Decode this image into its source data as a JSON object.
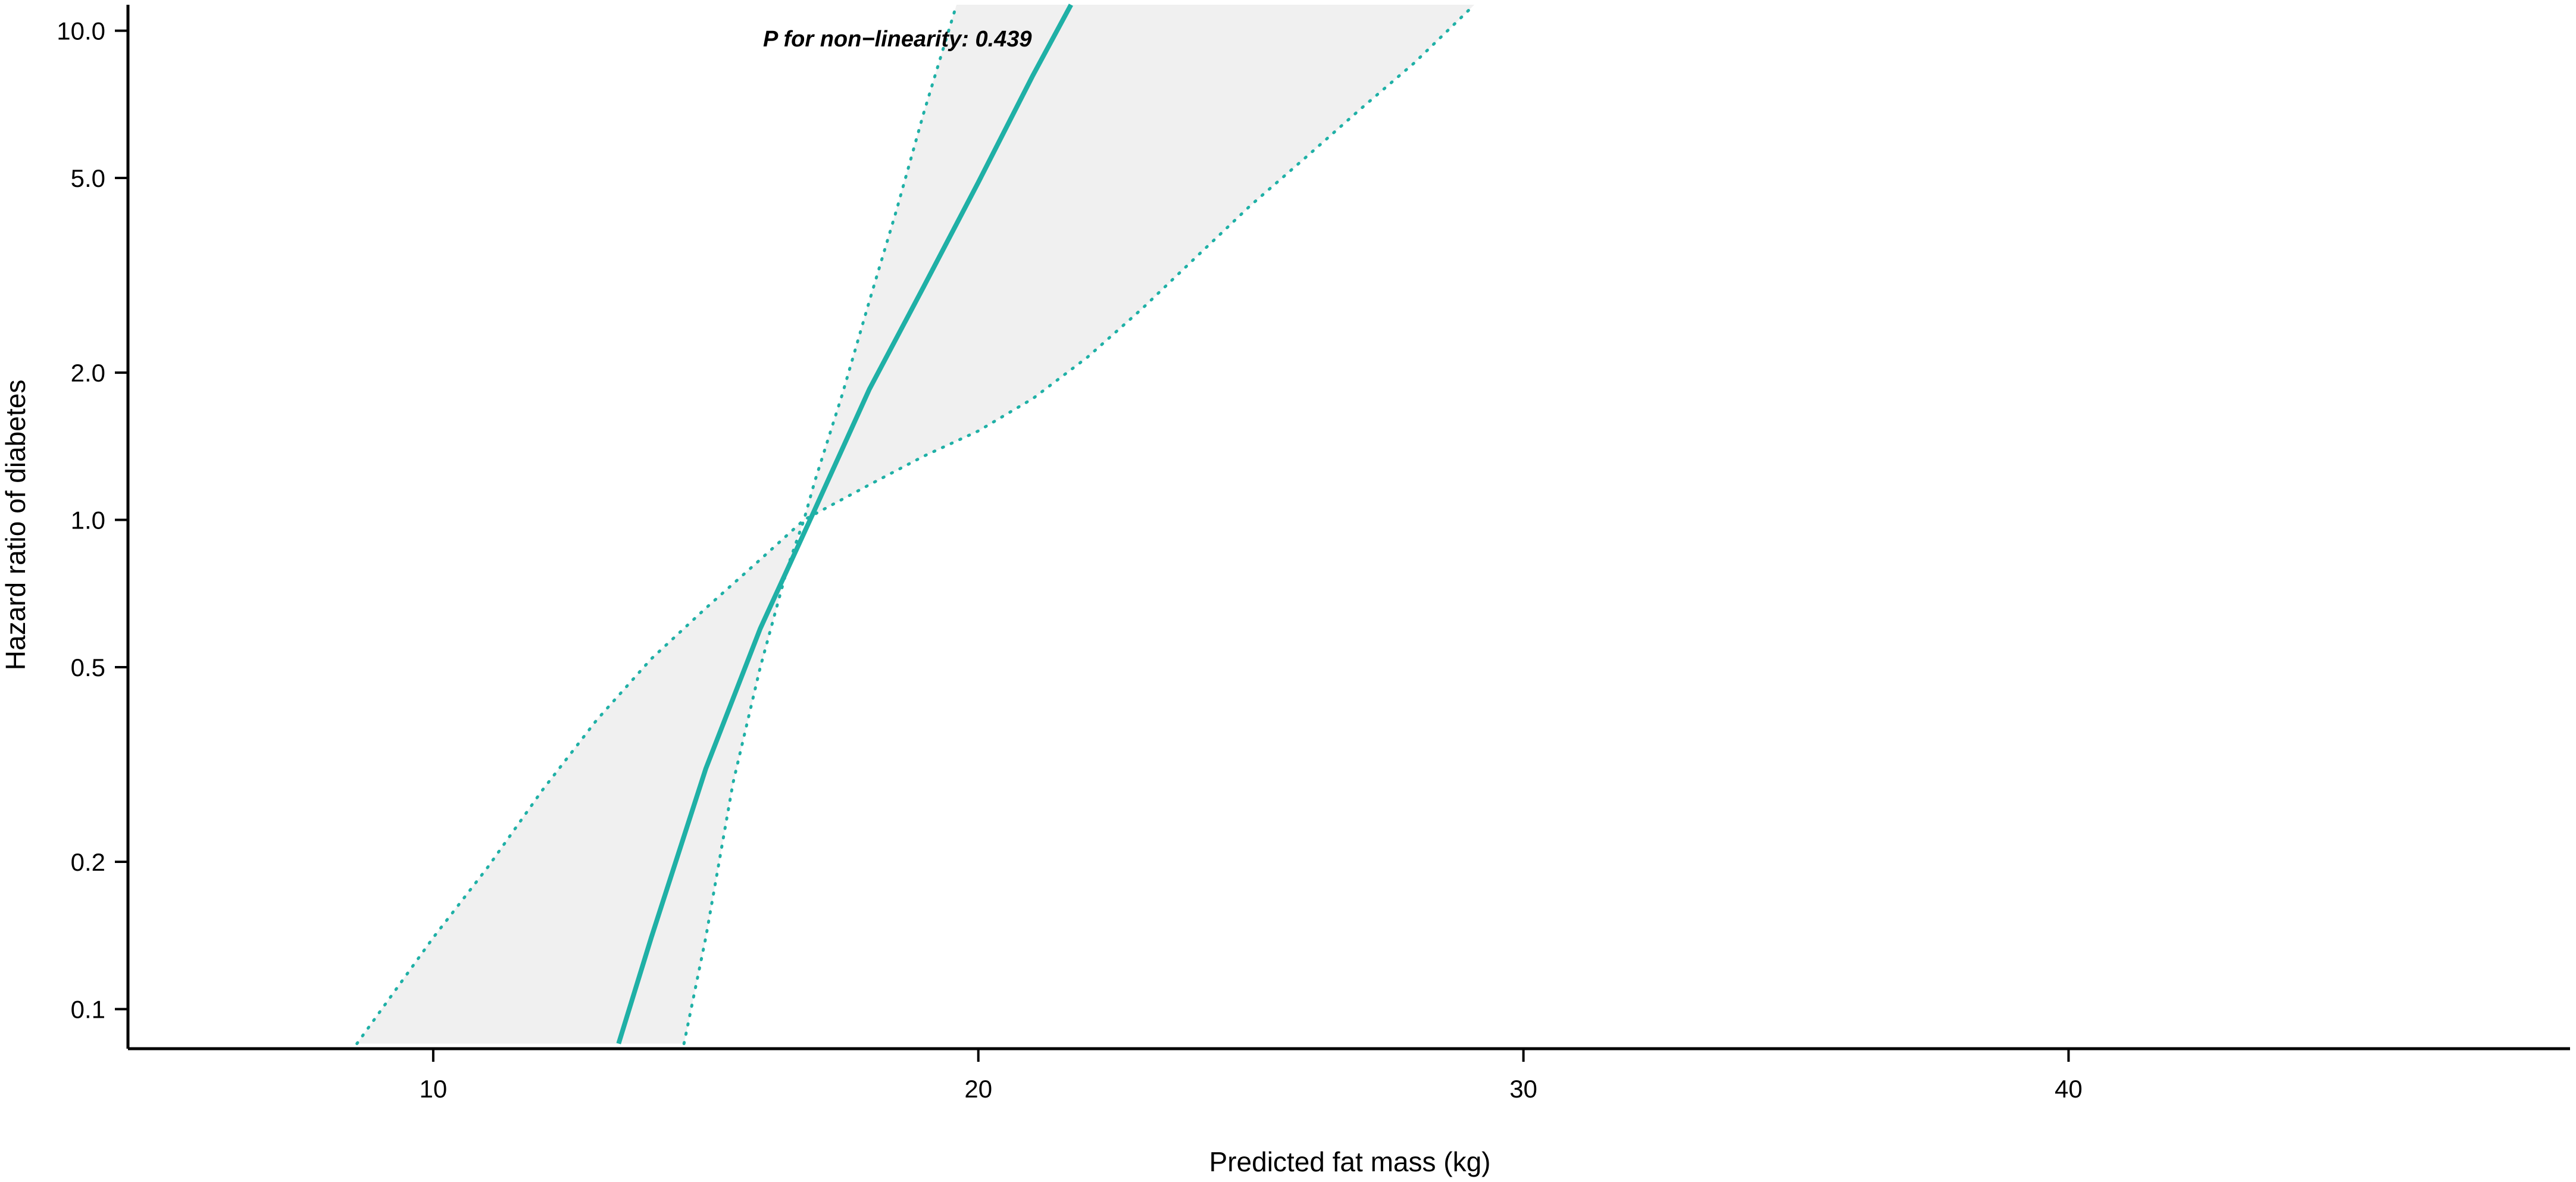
{
  "chart_data": {
    "type": "line",
    "title": "",
    "xlabel": "Predicted fat mass (kg)",
    "ylabel": "Hazard ratio of diabetes",
    "xlim": [
      4.4,
      49.2
    ],
    "ylim": [
      0.083,
      11.3
    ],
    "yscale": "log",
    "grid": false,
    "legend": "none",
    "x_ticks": [
      {
        "value": 10,
        "label": "10"
      },
      {
        "value": 20,
        "label": "20"
      },
      {
        "value": 30,
        "label": "30"
      },
      {
        "value": 40,
        "label": "40"
      }
    ],
    "y_ticks": [
      {
        "value": 0.1,
        "label": "0.1"
      },
      {
        "value": 0.2,
        "label": "0.2"
      },
      {
        "value": 0.5,
        "label": "0.5"
      },
      {
        "value": 1.0,
        "label": "1.0"
      },
      {
        "value": 2.0,
        "label": "2.0"
      },
      {
        "value": 5.0,
        "label": "5.0"
      },
      {
        "value": 10.0,
        "label": "10.0"
      }
    ],
    "annotation": "P for non−linearity: 0.439",
    "colors": {
      "line": "#1fb0a6",
      "ci_band": "#f0f0f0",
      "axis": "#000000"
    },
    "series": [
      {
        "role": "estimate",
        "x": [
          13.4,
          14,
          15,
          16,
          17,
          18,
          19,
          20,
          21,
          21.7
        ],
        "y": [
          0.085,
          0.14,
          0.31,
          0.6,
          1.05,
          1.85,
          3.0,
          4.9,
          8.1,
          11.3
        ]
      },
      {
        "role": "ci_lower",
        "x": [
          8.6,
          10,
          11,
          12,
          13,
          14,
          15,
          16,
          16.8,
          18,
          19,
          20,
          21,
          22,
          23,
          24,
          25,
          26,
          27,
          28,
          29.1
        ],
        "y": [
          0.085,
          0.14,
          0.195,
          0.28,
          0.39,
          0.52,
          0.66,
          0.83,
          1.0,
          1.18,
          1.35,
          1.52,
          1.77,
          2.15,
          2.7,
          3.45,
          4.4,
          5.5,
          6.9,
          8.6,
          11.3
        ]
      },
      {
        "role": "ci_upper",
        "x": [
          14.6,
          15,
          15.5,
          16,
          16.5,
          16.8,
          17,
          17.5,
          18,
          18.5,
          19,
          19.6
        ],
        "y": [
          0.085,
          0.14,
          0.29,
          0.5,
          0.8,
          1.0,
          1.2,
          1.8,
          2.8,
          4.3,
          6.8,
          11.3
        ]
      }
    ]
  }
}
